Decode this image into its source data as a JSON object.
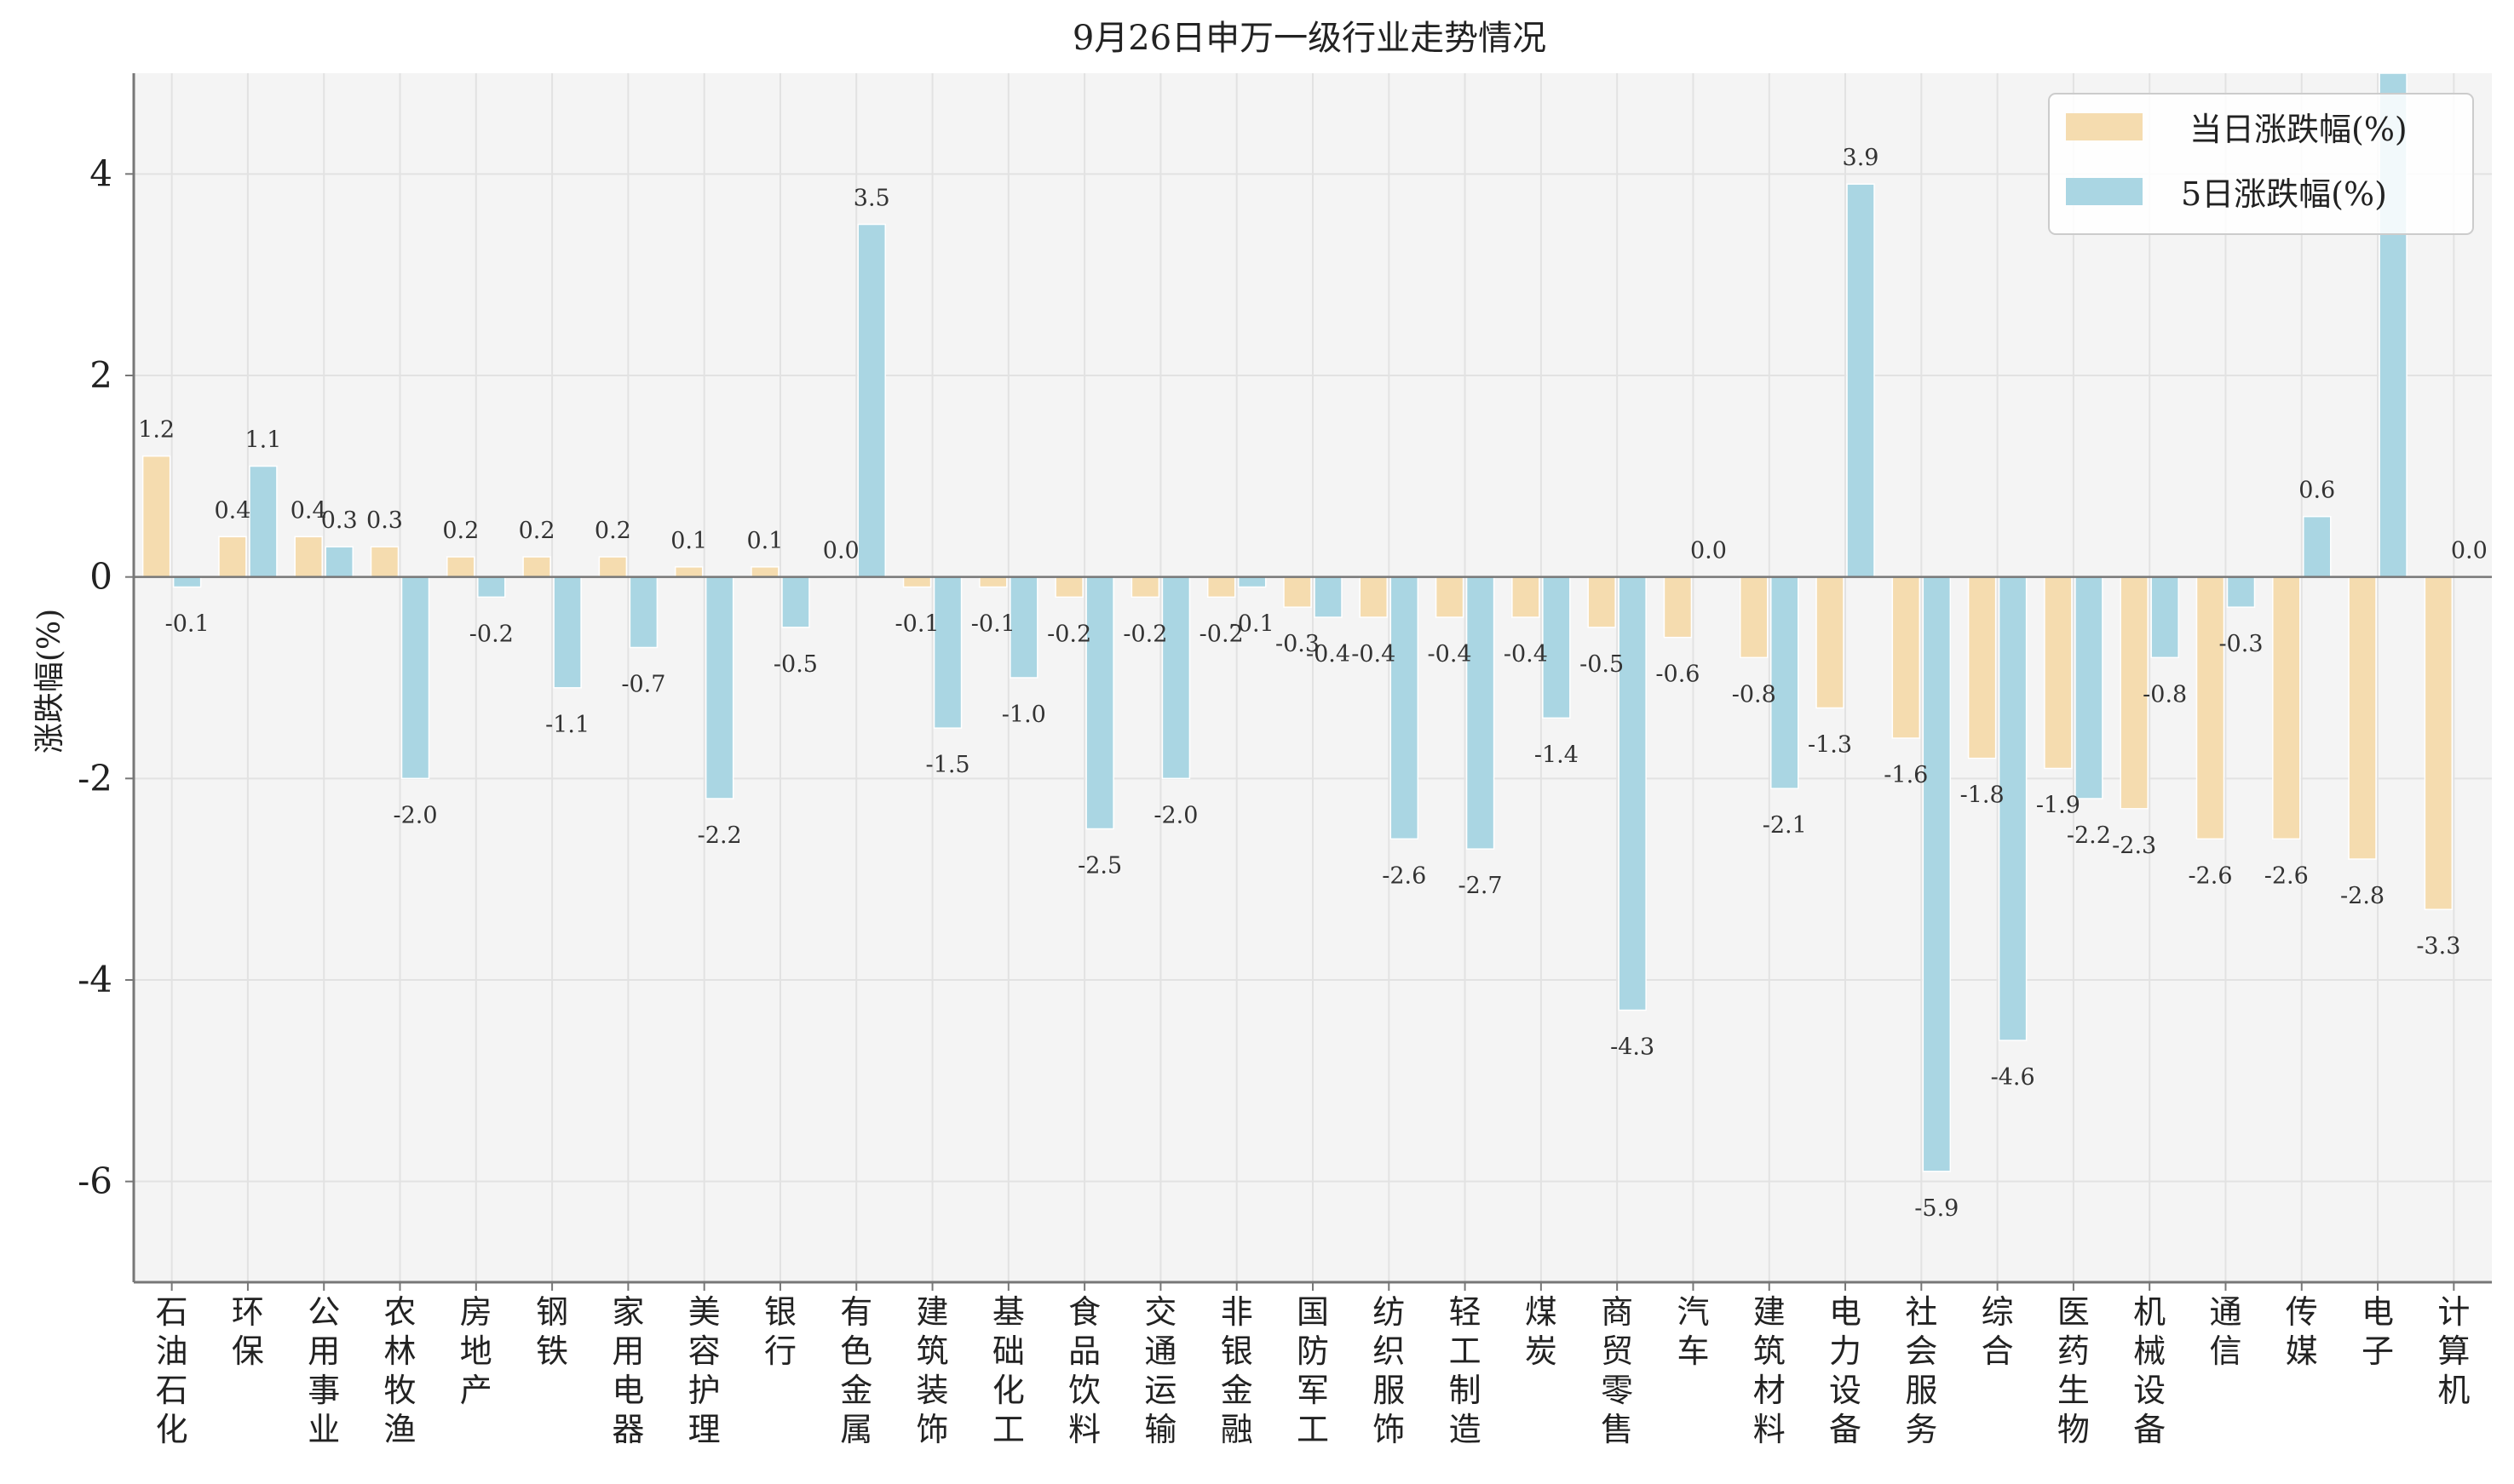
{
  "colors": {
    "today": "#f5dcaf",
    "five_day": "#aad6e3",
    "plot_bg": "#f4f4f4",
    "grid": "#e2e2e2",
    "axis": "#777777",
    "text": "#222222"
  },
  "legend": {
    "position": "top-right",
    "today_label": "当日涨跌幅(%)",
    "five_day_label": "5日涨跌幅(%)"
  },
  "chart_data": {
    "type": "bar",
    "title": "9月26日申万一级行业走势情况",
    "xlabel": "",
    "ylabel": "涨跌幅(%)",
    "ylim": [
      -7,
      5
    ],
    "yticks": [
      -6,
      -4,
      -2,
      0,
      2,
      4
    ],
    "grid": true,
    "categories": [
      "石油石化",
      "环保",
      "公用事业",
      "农林牧渔",
      "房地产",
      "钢铁",
      "家用电器",
      "美容护理",
      "银行",
      "有色金属",
      "建筑装饰",
      "基础化工",
      "食品饮料",
      "交通运输",
      "非银金融",
      "国防军工",
      "纺织服饰",
      "轻工制造",
      "煤炭",
      "商贸零售",
      "汽车",
      "建筑材料",
      "电力设备",
      "社会服务",
      "综合",
      "医药生物",
      "机械设备",
      "通信",
      "传媒",
      "电子",
      "计算机"
    ],
    "series": [
      {
        "name": "当日涨跌幅(%)",
        "values": [
          1.2,
          0.4,
          0.4,
          0.3,
          0.2,
          0.2,
          0.2,
          0.1,
          0.1,
          0.0,
          -0.1,
          -0.1,
          -0.2,
          -0.2,
          -0.2,
          -0.3,
          -0.4,
          -0.4,
          -0.4,
          -0.5,
          -0.6,
          -0.8,
          -1.3,
          -1.6,
          -1.8,
          -1.9,
          -2.3,
          -2.6,
          -2.6,
          -2.8,
          -3.3
        ]
      },
      {
        "name": "5日涨跌幅(%)",
        "values": [
          -0.1,
          1.1,
          0.3,
          -2.0,
          -0.2,
          -1.1,
          -0.7,
          -2.2,
          -0.5,
          3.5,
          -1.5,
          -1.0,
          -2.5,
          -2.0,
          -0.1,
          -0.4,
          -2.6,
          -2.7,
          -1.4,
          -4.3,
          0.0,
          -2.1,
          3.9,
          -5.9,
          -4.6,
          -2.2,
          -0.8,
          -0.3,
          0.6,
          5.0,
          0.0
        ]
      }
    ],
    "data_labels_today": [
      "1.2",
      "0.4",
      "0.4",
      "0.3",
      "0.2",
      "0.2",
      "0.2",
      "0.1",
      "0.1",
      "0.0",
      "-0.1",
      "-0.1",
      "-0.2",
      "-0.2",
      "-0.2",
      "-0.3",
      "-0.4",
      "-0.4",
      "-0.4",
      "-0.5",
      "-0.6",
      "-0.8",
      "-1.3",
      "-1.6",
      "-1.8",
      "-1.9",
      "-2.3",
      "-2.6",
      "-2.6",
      "-2.8",
      "-3.3"
    ],
    "data_labels_five_day": [
      "-0.1",
      "1.1",
      "0.3",
      "-2.0",
      "-0.2",
      "-1.1",
      "-0.7",
      "-2.2",
      "-0.5",
      "3.5",
      "-1.5",
      "-1.0",
      "-2.5",
      "-2.0",
      "-0.1",
      "-0.4",
      "-2.6",
      "-2.7",
      "-1.4",
      "-4.3",
      "0.0",
      "-2.1",
      "3.9",
      "-5.9",
      "-4.6",
      "-2.2",
      "-0.8",
      "-0.3",
      "0.6",
      "",
      "0.0"
    ]
  }
}
